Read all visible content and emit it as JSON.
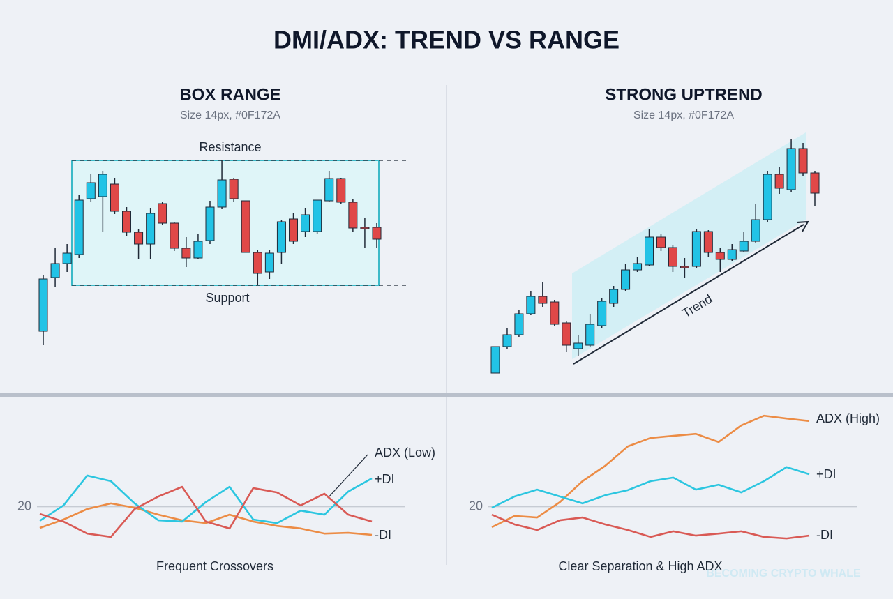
{
  "title": "DMI/ADX: TREND VS RANGE",
  "watermark": "BECOMING CRYPTO WHALE",
  "chart_data": [
    {
      "type": "candlestick",
      "title": "BOX RANGE",
      "subtitle": "Size 14px, #0F172A",
      "up_color": "#22c3e6",
      "down_color": "#e04848",
      "ylim": [
        -30,
        340
      ],
      "open": [
        55,
        132,
        152,
        165,
        245,
        248,
        266,
        227,
        197,
        180,
        238,
        210,
        174,
        160,
        185,
        233,
        273,
        242,
        168,
        140,
        168,
        216,
        198,
        198,
        242,
        274,
        240,
        204,
        204
      ],
      "high": [
        135,
        175,
        180,
        250,
        280,
        285,
        275,
        233,
        202,
        232,
        240,
        212,
        190,
        195,
        242,
        300,
        275,
        242,
        172,
        172,
        214,
        225,
        232,
        243,
        285,
        275,
        245,
        218,
        210
      ],
      "low": [
        35,
        118,
        140,
        160,
        240,
        197,
        223,
        192,
        158,
        158,
        208,
        170,
        147,
        158,
        180,
        230,
        240,
        168,
        122,
        130,
        152,
        180,
        190,
        195,
        240,
        238,
        197,
        174,
        174
      ],
      "close": [
        130,
        152,
        167,
        243,
        268,
        280,
        227,
        197,
        180,
        224,
        210,
        174,
        160,
        184,
        233,
        272,
        245,
        168,
        138,
        167,
        212,
        184,
        222,
        243,
        274,
        240,
        203,
        203,
        187
      ],
      "resistance": {
        "label": "Resistance",
        "value": 300
      },
      "support": {
        "label": "Support",
        "value": 121
      }
    },
    {
      "type": "candlestick",
      "title": "STRONG UPTREND",
      "subtitle": "Size 14px, #0F172A",
      "up_color": "#22c3e6",
      "down_color": "#e04848",
      "ylim": [
        0,
        370
      ],
      "open": [
        25,
        63,
        80,
        110,
        135,
        127,
        97,
        60,
        65,
        93,
        125,
        145,
        173,
        180,
        220,
        205,
        178,
        178,
        228,
        198,
        188,
        200,
        214,
        245,
        310,
        288,
        347,
        312
      ],
      "high": [
        63,
        90,
        115,
        142,
        155,
        130,
        100,
        80,
        110,
        132,
        150,
        182,
        192,
        232,
        225,
        208,
        190,
        232,
        230,
        205,
        210,
        227,
        267,
        315,
        320,
        360,
        355,
        315
      ],
      "low": [
        25,
        60,
        77,
        108,
        120,
        92,
        55,
        50,
        62,
        90,
        120,
        142,
        170,
        178,
        200,
        170,
        162,
        175,
        192,
        170,
        185,
        198,
        212,
        242,
        282,
        285,
        308,
        265
      ],
      "close": [
        63,
        80,
        110,
        135,
        125,
        95,
        65,
        68,
        95,
        128,
        145,
        173,
        182,
        220,
        205,
        178,
        177,
        228,
        198,
        188,
        202,
        214,
        245,
        310,
        290,
        347,
        312,
        283
      ],
      "annotation": "Trend"
    },
    {
      "type": "line",
      "caption": "Frequent Crossovers",
      "xlim": [
        0,
        14
      ],
      "ylim": [
        0,
        60
      ],
      "yticks": [
        20
      ],
      "x": [
        0,
        1,
        2,
        3,
        4,
        5,
        6,
        7,
        8,
        9,
        10,
        11,
        12,
        13,
        14
      ],
      "series": [
        {
          "name": "ADX (Low)",
          "color": "#ec8c45",
          "values": [
            11.7,
            15,
            19.1,
            21.3,
            19.6,
            16.9,
            14.7,
            13.6,
            16.9,
            14.2,
            12.5,
            11.5,
            9.5,
            9.8,
            9
          ]
        },
        {
          "name": "+DI",
          "color": "#2cc6e0",
          "values": [
            14.5,
            20.5,
            32.2,
            30,
            21.3,
            14.7,
            14.2,
            21.8,
            27.8,
            15,
            13.6,
            18.5,
            16.9,
            25.9,
            31.1
          ]
        },
        {
          "name": "-DI",
          "color": "#d95a55",
          "values": [
            17.2,
            14.2,
            9.5,
            8.2,
            19.1,
            24,
            27.8,
            14.2,
            11.5,
            27.3,
            25.6,
            20.5,
            25.1,
            16.9,
            14.2
          ]
        }
      ]
    },
    {
      "type": "line",
      "caption": "Clear Separation & High ADX",
      "xlim": [
        0,
        14
      ],
      "ylim": [
        0,
        60
      ],
      "yticks": [
        20
      ],
      "x": [
        0,
        1,
        2,
        3,
        4,
        5,
        6,
        7,
        8,
        9,
        10,
        11,
        12,
        13,
        14
      ],
      "series": [
        {
          "name": "ADX (High)",
          "color": "#ec8c45",
          "values": [
            12,
            16.4,
            15.8,
            21.8,
            30,
            36,
            43.6,
            46.9,
            47.7,
            48.5,
            45.3,
            51.8,
            55.6,
            54.5,
            53.5
          ]
        },
        {
          "name": "+DI",
          "color": "#2cc6e0",
          "values": [
            19.6,
            24,
            26.7,
            24,
            21.3,
            24.5,
            26.5,
            30,
            31.4,
            26.7,
            28.6,
            25.6,
            30,
            35.5,
            32.7
          ]
        },
        {
          "name": "-DI",
          "color": "#d95a55",
          "values": [
            16.9,
            13.1,
            10.9,
            14.7,
            15.8,
            13.1,
            10.9,
            8.2,
            10.4,
            8.7,
            9.5,
            10.4,
            8.2,
            7.6,
            8.7
          ]
        }
      ]
    }
  ]
}
